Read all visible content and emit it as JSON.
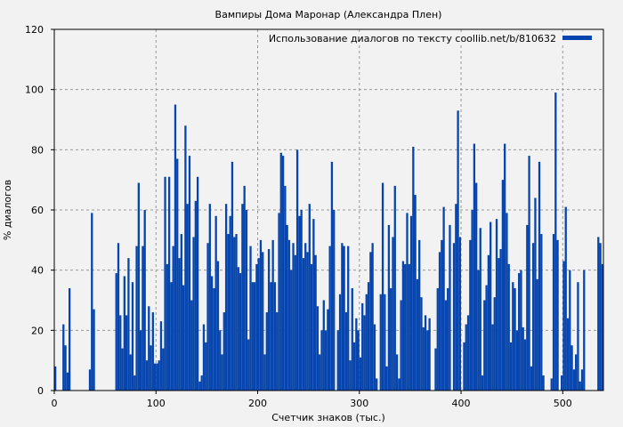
{
  "chart_data": {
    "type": "bar",
    "title": "Вампиры Дома Маронар (Александра Плен)",
    "xlabel": "Счетчик знаков (тыс.)",
    "ylabel": "% диалогов",
    "xlim": [
      0,
      540
    ],
    "ylim": [
      0,
      120
    ],
    "xticks": [
      0,
      100,
      200,
      300,
      400,
      500
    ],
    "yticks": [
      0,
      20,
      40,
      60,
      80,
      100,
      120
    ],
    "grid": true,
    "legend": {
      "position": "top-right",
      "label": "Использование диалогов по тексту coollib.net/b/810632"
    },
    "bar_color": "#0645ad",
    "x_step": 2,
    "x_start": 0,
    "values": [
      8,
      0,
      0,
      0,
      22,
      15,
      6,
      34,
      0,
      0,
      0,
      0,
      0,
      0,
      0,
      0,
      0,
      7,
      59,
      27,
      0,
      0,
      0,
      0,
      0,
      0,
      0,
      0,
      0,
      0,
      39,
      49,
      25,
      14,
      38,
      25,
      44,
      12,
      36,
      5,
      48,
      69,
      20,
      48,
      60,
      10,
      28,
      15,
      26,
      9,
      9,
      10,
      23,
      14,
      71,
      42,
      71,
      36,
      48,
      95,
      77,
      44,
      52,
      35,
      88,
      62,
      78,
      30,
      51,
      63,
      71,
      3,
      5,
      22,
      16,
      49,
      62,
      38,
      34,
      58,
      43,
      20,
      12,
      26,
      62,
      52,
      58,
      76,
      51,
      52,
      41,
      39,
      62,
      68,
      60,
      17,
      48,
      36,
      36,
      42,
      44,
      50,
      46,
      12,
      26,
      47,
      36,
      50,
      36,
      26,
      59,
      79,
      78,
      68,
      55,
      50,
      40,
      49,
      45,
      80,
      58,
      60,
      44,
      49,
      46,
      62,
      42,
      57,
      45,
      28,
      12,
      20,
      30,
      20,
      27,
      48,
      76,
      60,
      0,
      20,
      32,
      49,
      48,
      26,
      48,
      10,
      34,
      16,
      24,
      20,
      11,
      29,
      25,
      32,
      36,
      46,
      49,
      22,
      4,
      0,
      32,
      69,
      32,
      8,
      55,
      34,
      51,
      68,
      12,
      4,
      30,
      43,
      42,
      59,
      42,
      58,
      81,
      65,
      37,
      50,
      31,
      21,
      25,
      20,
      24,
      0,
      0,
      14,
      34,
      46,
      50,
      61,
      30,
      34,
      55,
      0,
      49,
      62,
      93,
      51,
      0,
      16,
      22,
      25,
      50,
      60,
      82,
      69,
      40,
      54,
      5,
      30,
      35,
      45,
      56,
      22,
      31,
      57,
      44,
      47,
      70,
      82,
      59,
      42,
      16,
      36,
      34,
      20,
      39,
      40,
      21,
      17,
      55,
      78,
      8,
      49,
      64,
      37,
      76,
      52,
      5,
      0,
      0,
      0,
      4,
      52,
      99,
      50,
      0,
      5,
      43,
      61,
      24,
      40,
      15,
      7,
      12,
      36,
      3,
      7,
      40,
      0,
      0,
      0,
      0,
      0,
      0,
      51,
      49,
      42
    ]
  }
}
